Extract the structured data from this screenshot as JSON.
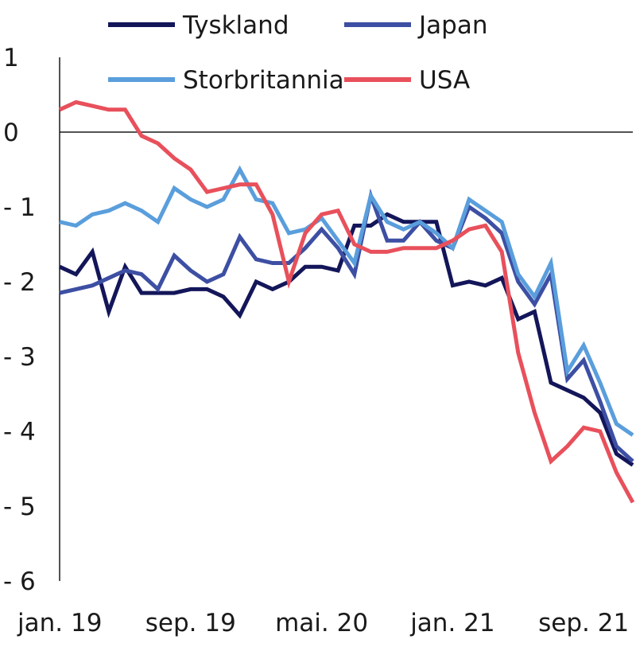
{
  "chart_data": {
    "type": "line",
    "title": "",
    "xlabel": "",
    "ylabel": "",
    "ylim": [
      -6,
      1
    ],
    "y_ticks": [
      {
        "value": 1,
        "label": "1"
      },
      {
        "value": 0,
        "label": "0"
      },
      {
        "value": -1,
        "label": "- 1"
      },
      {
        "value": -2,
        "label": "- 2"
      },
      {
        "value": -3,
        "label": "- 3"
      },
      {
        "value": -4,
        "label": "- 4"
      },
      {
        "value": -5,
        "label": "- 5"
      },
      {
        "value": -6,
        "label": "- 6"
      }
    ],
    "x_ticks": [
      {
        "index": 0,
        "label": "jan. 19"
      },
      {
        "index": 8,
        "label": "sep. 19"
      },
      {
        "index": 16,
        "label": "mai. 20"
      },
      {
        "index": 24,
        "label": "jan. 21"
      },
      {
        "index": 32,
        "label": "sep. 21"
      }
    ],
    "x": [
      "jan. 19",
      "feb. 19",
      "mar. 19",
      "apr. 19",
      "mai. 19",
      "jun. 19",
      "jul. 19",
      "aug. 19",
      "sep. 19",
      "okt. 19",
      "nov. 19",
      "des. 19",
      "jan. 20",
      "feb. 20",
      "mar. 20",
      "apr. 20",
      "mai. 20",
      "jun. 20",
      "jul. 20",
      "aug. 20",
      "sep. 20",
      "okt. 20",
      "nov. 20",
      "des. 20",
      "jan. 21",
      "feb. 21",
      "mar. 21",
      "apr. 21",
      "mai. 21",
      "jun. 21",
      "jul. 21",
      "aug. 21",
      "sep. 21",
      "okt. 21",
      "nov. 21",
      "des. 21"
    ],
    "zero_line": true,
    "grid": false,
    "legend_position": "top",
    "series": [
      {
        "name": "Tyskland",
        "color": "#14165a",
        "values": [
          -1.8,
          -1.9,
          -1.6,
          -2.4,
          -1.8,
          -2.15,
          -2.15,
          -2.15,
          -2.1,
          -2.1,
          -2.2,
          -2.45,
          -2.0,
          -2.1,
          -2.0,
          -1.8,
          -1.8,
          -1.85,
          -1.25,
          -1.25,
          -1.1,
          -1.2,
          -1.2,
          -1.2,
          -2.05,
          -2.0,
          -2.05,
          -1.95,
          -2.5,
          -2.4,
          -3.35,
          -3.45,
          -3.55,
          -3.75,
          -4.3,
          -4.45
        ]
      },
      {
        "name": "Japan",
        "color": "#3d4fa3",
        "values": [
          -2.15,
          -2.1,
          -2.05,
          -1.95,
          -1.85,
          -1.9,
          -2.1,
          -1.65,
          -1.85,
          -2.0,
          -1.9,
          -1.4,
          -1.7,
          -1.75,
          -1.75,
          -1.55,
          -1.3,
          -1.55,
          -1.9,
          -0.85,
          -1.45,
          -1.45,
          -1.2,
          -1.45,
          -1.55,
          -1.0,
          -1.15,
          -1.35,
          -2.0,
          -2.3,
          -1.9,
          -3.3,
          -3.05,
          -3.6,
          -4.2,
          -4.4
        ]
      },
      {
        "name": "Storbritannia",
        "color": "#5a9edc",
        "values": [
          -1.2,
          -1.25,
          -1.1,
          -1.05,
          -0.95,
          -1.05,
          -1.2,
          -0.75,
          -0.9,
          -1.0,
          -0.9,
          -0.5,
          -0.9,
          -0.95,
          -1.35,
          -1.3,
          -1.15,
          -1.45,
          -1.75,
          -0.85,
          -1.2,
          -1.3,
          -1.2,
          -1.35,
          -1.55,
          -0.9,
          -1.05,
          -1.2,
          -1.9,
          -2.2,
          -1.75,
          -3.2,
          -2.85,
          -3.35,
          -3.9,
          -4.05
        ]
      },
      {
        "name": "USA",
        "color": "#e8505b",
        "values": [
          0.3,
          0.4,
          0.35,
          0.3,
          0.3,
          -0.05,
          -0.15,
          -0.35,
          -0.5,
          -0.8,
          -0.75,
          -0.7,
          -0.7,
          -1.1,
          -2.0,
          -1.35,
          -1.1,
          -1.05,
          -1.5,
          -1.6,
          -1.6,
          -1.55,
          -1.55,
          -1.55,
          -1.45,
          -1.3,
          -1.25,
          -1.6,
          -2.95,
          -3.75,
          -4.4,
          -4.2,
          -3.95,
          -4.0,
          -4.55,
          -4.95
        ]
      }
    ]
  }
}
